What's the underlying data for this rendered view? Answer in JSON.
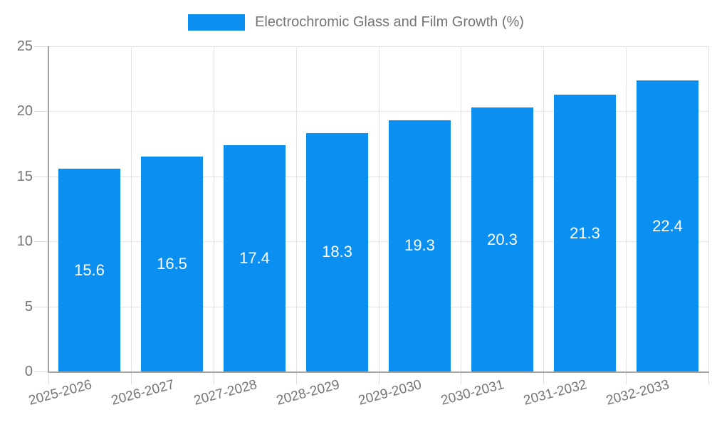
{
  "legend": {
    "label": "Electrochromic Glass and Film Growth (%)"
  },
  "chart_data": {
    "type": "bar",
    "title": "Electrochromic Glass and Film Growth (%)",
    "categories": [
      "2025-2026",
      "2026-2027",
      "2027-2028",
      "2028-2029",
      "2029-2030",
      "2030-2031",
      "2031-2032",
      "2032-2033"
    ],
    "values": [
      15.6,
      16.5,
      17.4,
      18.3,
      19.3,
      20.3,
      21.3,
      22.4
    ],
    "value_labels": [
      "15.6",
      "16.5",
      "17.4",
      "18.3",
      "19.3",
      "20.3",
      "21.3",
      "22.4"
    ],
    "xlabel": "",
    "ylabel": "",
    "ylim": [
      0,
      25
    ],
    "yticks": [
      0,
      5,
      10,
      15,
      20,
      25
    ],
    "grid": true,
    "legend_position": "top"
  },
  "colors": {
    "bar": "#0b90f2",
    "gridline": "#e3e3e3",
    "axis": "#a3a3a3",
    "tick": "#dcdcdc",
    "axis_text": "#757575",
    "value_label": "#ffffff",
    "background": "#ffffff"
  }
}
